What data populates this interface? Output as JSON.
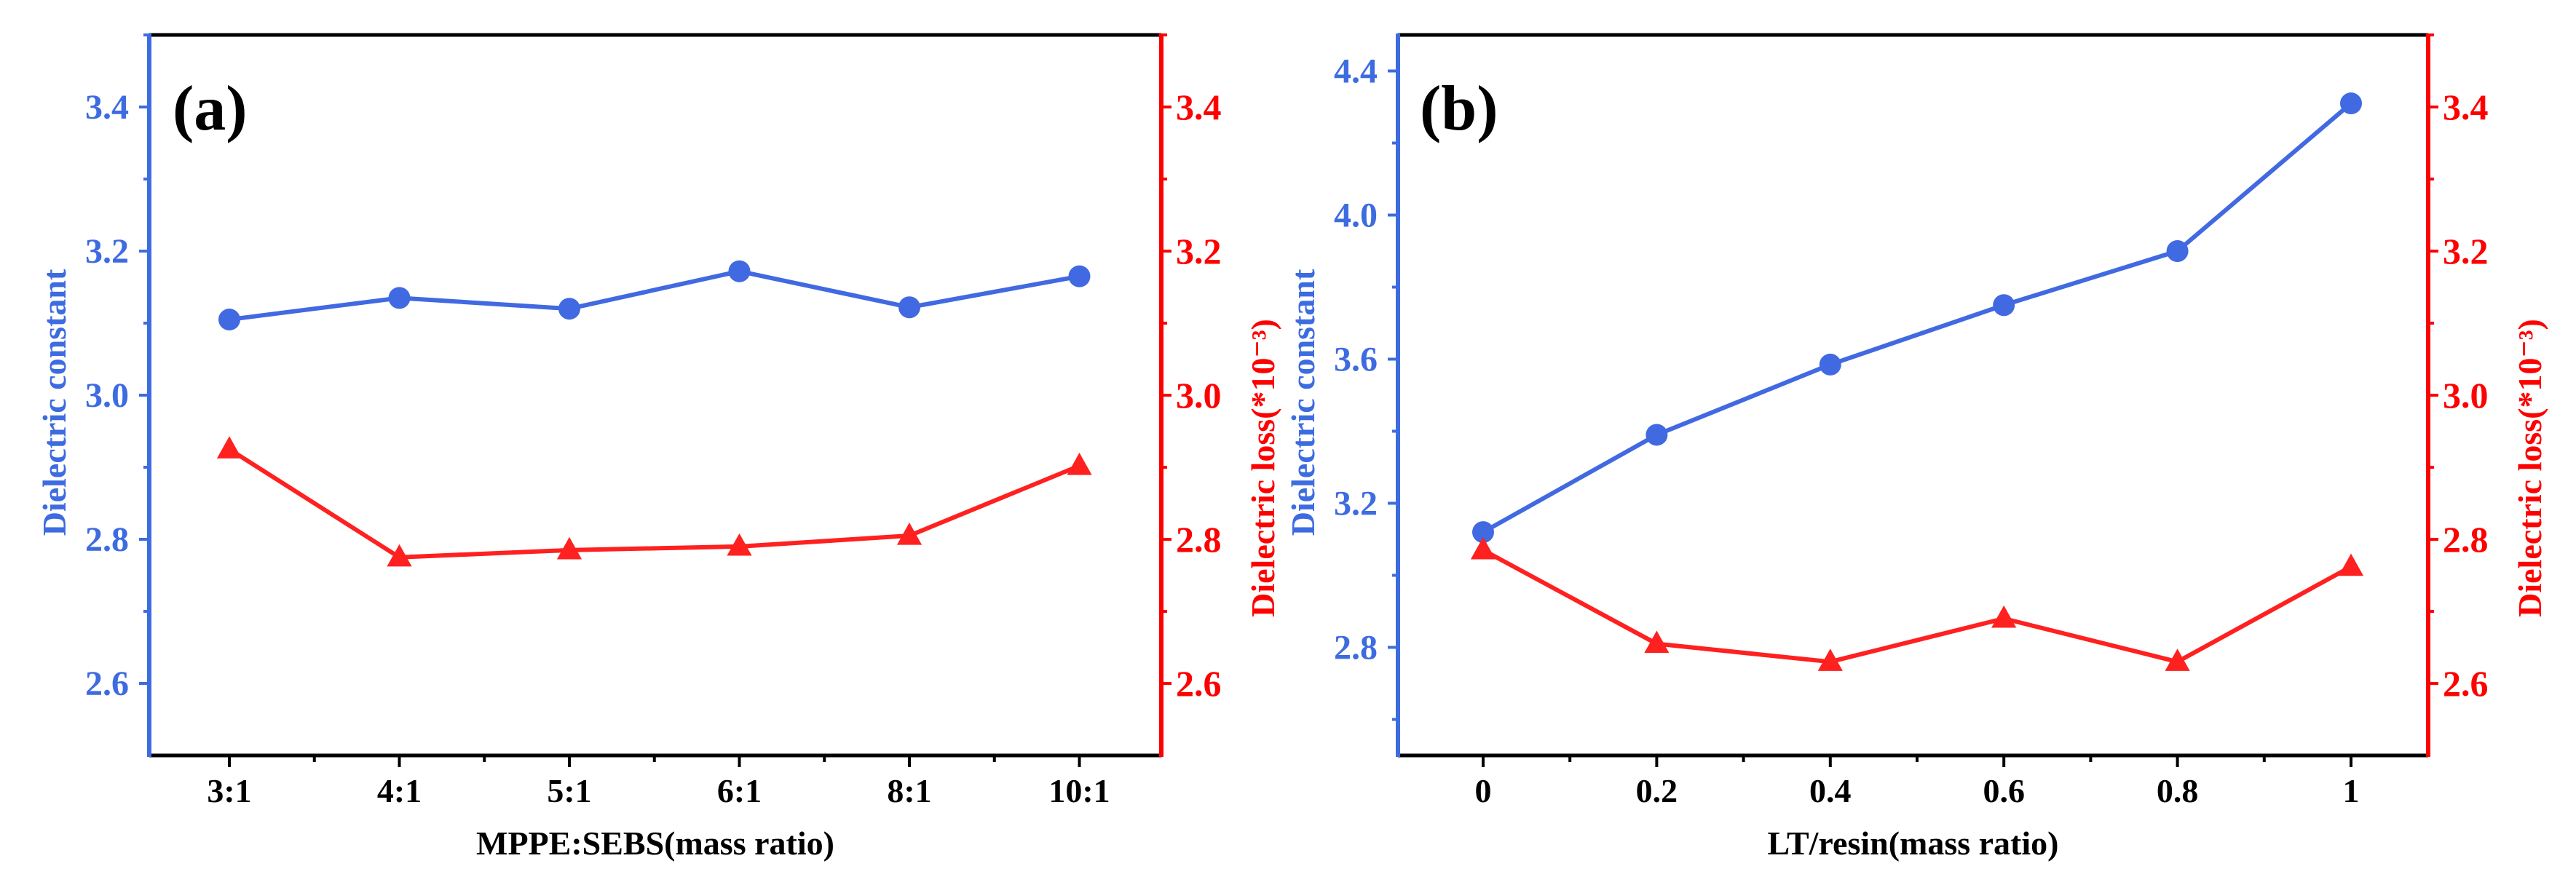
{
  "chart_data": [
    {
      "type": "line",
      "panel_label": "(a)",
      "xlabel": "MPPE:SEBS(mass ratio)",
      "categories": [
        "3:1",
        "4:1",
        "5:1",
        "6:1",
        "8:1",
        "10:1"
      ],
      "ylabel_left": "Dielectric constant",
      "ylabel_right": "Dielectric loss(*10⁻³)",
      "ylim_left": [
        2.5,
        3.5
      ],
      "ylim_right": [
        2.5,
        3.5
      ],
      "yticks_left": [
        "2.6",
        "2.8",
        "3.0",
        "3.2",
        "3.4"
      ],
      "yticks_right": [
        "2.6",
        "2.8",
        "3.0",
        "3.2",
        "3.4"
      ],
      "series": [
        {
          "name": "Dielectric constant",
          "axis": "left",
          "marker": "circle",
          "color": "#4169E1",
          "values": [
            3.105,
            3.135,
            3.12,
            3.172,
            3.122,
            3.165
          ]
        },
        {
          "name": "Dielectric loss",
          "axis": "right",
          "marker": "triangle",
          "color": "#FF2020",
          "values": [
            2.925,
            2.775,
            2.785,
            2.79,
            2.805,
            2.902
          ]
        }
      ]
    },
    {
      "type": "line",
      "panel_label": "(b)",
      "xlabel": "LT/resin(mass ratio)",
      "categories": [
        "0",
        "0.2",
        "0.4",
        "0.6",
        "0.8",
        "1"
      ],
      "ylabel_left": "Dielectric constant",
      "ylabel_right": "Dielectric loss(*10⁻³)",
      "ylim_left": [
        2.5,
        4.5
      ],
      "ylim_right": [
        2.5,
        3.5
      ],
      "yticks_left": [
        "2.8",
        "3.2",
        "3.6",
        "4.0",
        "4.4"
      ],
      "yticks_right": [
        "2.6",
        "2.8",
        "3.0",
        "3.2",
        "3.4"
      ],
      "series": [
        {
          "name": "Dielectric constant",
          "axis": "left",
          "marker": "circle",
          "color": "#4169E1",
          "values": [
            3.12,
            3.39,
            3.585,
            3.75,
            3.9,
            4.31
          ]
        },
        {
          "name": "Dielectric loss",
          "axis": "right",
          "marker": "triangle",
          "color": "#FF2020",
          "values": [
            2.785,
            2.655,
            2.63,
            2.69,
            2.63,
            2.762
          ]
        }
      ]
    }
  ]
}
